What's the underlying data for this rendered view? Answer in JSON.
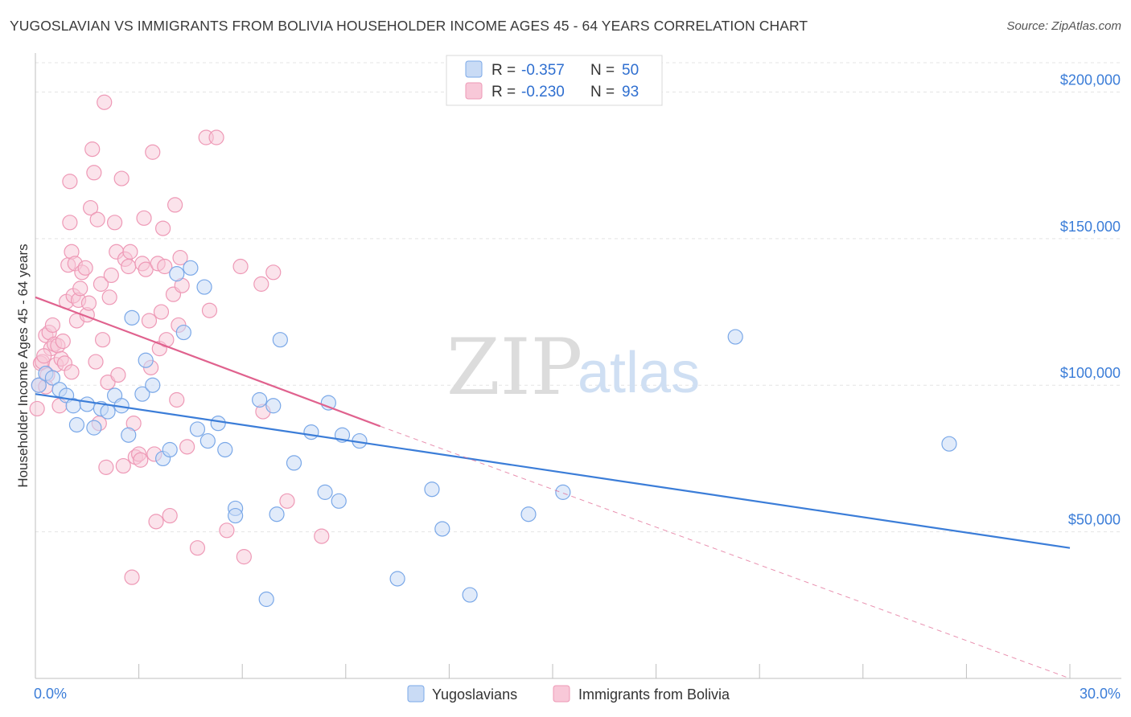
{
  "header": {
    "title": "YUGOSLAVIAN VS IMMIGRANTS FROM BOLIVIA HOUSEHOLDER INCOME AGES 45 - 64 YEARS CORRELATION CHART",
    "source": "Source: ZipAtlas.com"
  },
  "watermark": {
    "zip": "ZIP",
    "atlas": "atlas"
  },
  "legend_box": {
    "rows": [
      {
        "r_label": "R =",
        "r_value": "-0.357",
        "n_label": "N =",
        "n_value": "50"
      },
      {
        "r_label": "R =",
        "r_value": "-0.230",
        "n_label": "N =",
        "n_value": "93"
      }
    ]
  },
  "bottom_legend": [
    "Yugoslavians",
    "Immigrants from Bolivia"
  ],
  "colors": {
    "blue": "#3b7dd8",
    "blue_fill": "#c9dbf5",
    "blue_stroke": "#7aa8e8",
    "pink": "#e0628e",
    "pink_fill": "#f8c8d8",
    "pink_stroke": "#ee99b6",
    "grid": "#e4e4e4",
    "tick_text": "#3b7dd8"
  },
  "chart_data": {
    "type": "scatter",
    "title": "YUGOSLAVIAN VS IMMIGRANTS FROM BOLIVIA HOUSEHOLDER INCOME AGES 45 - 64 YEARS CORRELATION CHART",
    "xlabel": "",
    "ylabel": "Householder Income Ages 45 - 64 years",
    "xlim": [
      0,
      30
    ],
    "ylim": [
      0,
      210000
    ],
    "x_tick_labels": [
      "0.0%",
      "30.0%"
    ],
    "y_ticks": [
      50000,
      100000,
      150000,
      200000
    ],
    "y_tick_labels": [
      "$50,000",
      "$100,000",
      "$150,000",
      "$200,000"
    ],
    "grid": true,
    "legend_position": "top-center",
    "series": [
      {
        "name": "Yugoslavians",
        "color": "#3b7dd8",
        "r": -0.357,
        "n": 50,
        "trendline": {
          "x": [
            0,
            30
          ],
          "y": [
            97000,
            44500
          ]
        },
        "points": [
          [
            0.1,
            100000
          ],
          [
            0.3,
            104000
          ],
          [
            0.5,
            102500
          ],
          [
            0.7,
            98500
          ],
          [
            0.9,
            96500
          ],
          [
            1.1,
            93000
          ],
          [
            1.2,
            86500
          ],
          [
            1.5,
            93500
          ],
          [
            1.7,
            85500
          ],
          [
            1.9,
            92000
          ],
          [
            2.1,
            91000
          ],
          [
            2.3,
            96500
          ],
          [
            2.5,
            93000
          ],
          [
            2.7,
            83000
          ],
          [
            2.8,
            123000
          ],
          [
            3.1,
            97000
          ],
          [
            3.2,
            108500
          ],
          [
            3.4,
            100000
          ],
          [
            3.7,
            75000
          ],
          [
            3.9,
            78000
          ],
          [
            4.1,
            138000
          ],
          [
            4.3,
            118000
          ],
          [
            4.5,
            140000
          ],
          [
            4.7,
            85000
          ],
          [
            4.9,
            133500
          ],
          [
            5.0,
            81000
          ],
          [
            5.3,
            87000
          ],
          [
            5.5,
            78000
          ],
          [
            5.8,
            58000
          ],
          [
            5.8,
            55500
          ],
          [
            6.5,
            95000
          ],
          [
            6.7,
            27000
          ],
          [
            6.9,
            93000
          ],
          [
            7.0,
            56000
          ],
          [
            7.1,
            115500
          ],
          [
            7.5,
            73500
          ],
          [
            8.0,
            84000
          ],
          [
            8.4,
            63500
          ],
          [
            8.5,
            94000
          ],
          [
            8.8,
            60500
          ],
          [
            8.9,
            83000
          ],
          [
            9.4,
            81000
          ],
          [
            10.5,
            34000
          ],
          [
            11.5,
            64500
          ],
          [
            11.8,
            51000
          ],
          [
            12.6,
            28500
          ],
          [
            14.3,
            56000
          ],
          [
            15.3,
            63500
          ],
          [
            20.3,
            116500
          ],
          [
            26.5,
            80000
          ]
        ]
      },
      {
        "name": "Immigrants from Bolivia",
        "color": "#e0628e",
        "r": -0.23,
        "n": 93,
        "trendline": {
          "x": [
            0,
            10
          ],
          "y": [
            130000,
            86000
          ]
        },
        "trendline_dashed": {
          "x": [
            10,
            30
          ],
          "y": [
            86000,
            0
          ]
        },
        "points": [
          [
            0.05,
            92000
          ],
          [
            0.1,
            100000
          ],
          [
            0.15,
            107500
          ],
          [
            0.2,
            108000
          ],
          [
            0.3,
            117000
          ],
          [
            0.35,
            103500
          ],
          [
            0.4,
            118000
          ],
          [
            0.45,
            112500
          ],
          [
            0.5,
            120500
          ],
          [
            0.55,
            114000
          ],
          [
            0.6,
            107000
          ],
          [
            0.65,
            113500
          ],
          [
            0.7,
            93000
          ],
          [
            0.75,
            109000
          ],
          [
            0.8,
            115000
          ],
          [
            0.85,
            107500
          ],
          [
            0.9,
            128500
          ],
          [
            0.95,
            141000
          ],
          [
            1.0,
            155500
          ],
          [
            1.0,
            169500
          ],
          [
            1.05,
            145500
          ],
          [
            1.1,
            130500
          ],
          [
            1.15,
            141500
          ],
          [
            1.2,
            122000
          ],
          [
            1.25,
            129000
          ],
          [
            1.3,
            133000
          ],
          [
            1.35,
            138500
          ],
          [
            1.45,
            140000
          ],
          [
            1.5,
            124000
          ],
          [
            1.55,
            128000
          ],
          [
            1.6,
            160500
          ],
          [
            1.65,
            180500
          ],
          [
            1.7,
            172500
          ],
          [
            1.75,
            108000
          ],
          [
            1.8,
            156500
          ],
          [
            1.85,
            87000
          ],
          [
            1.9,
            134500
          ],
          [
            1.95,
            115500
          ],
          [
            2.0,
            196500
          ],
          [
            2.05,
            72000
          ],
          [
            2.1,
            101000
          ],
          [
            2.15,
            130000
          ],
          [
            2.2,
            137500
          ],
          [
            2.3,
            155500
          ],
          [
            2.35,
            145500
          ],
          [
            2.4,
            103500
          ],
          [
            2.5,
            170500
          ],
          [
            2.55,
            72500
          ],
          [
            2.6,
            143000
          ],
          [
            2.7,
            140500
          ],
          [
            2.75,
            145500
          ],
          [
            2.8,
            34500
          ],
          [
            2.85,
            87000
          ],
          [
            2.9,
            75500
          ],
          [
            3.0,
            76500
          ],
          [
            3.05,
            74500
          ],
          [
            3.1,
            141500
          ],
          [
            3.15,
            157000
          ],
          [
            3.2,
            139500
          ],
          [
            3.3,
            122000
          ],
          [
            3.35,
            106000
          ],
          [
            3.4,
            179500
          ],
          [
            3.45,
            76500
          ],
          [
            3.5,
            53500
          ],
          [
            3.55,
            141500
          ],
          [
            3.6,
            112500
          ],
          [
            3.65,
            125000
          ],
          [
            3.7,
            153500
          ],
          [
            3.75,
            140500
          ],
          [
            3.8,
            115500
          ],
          [
            3.9,
            55500
          ],
          [
            4.0,
            131000
          ],
          [
            4.05,
            161500
          ],
          [
            4.1,
            95000
          ],
          [
            4.15,
            120500
          ],
          [
            4.2,
            143500
          ],
          [
            4.25,
            134000
          ],
          [
            4.4,
            79000
          ],
          [
            4.7,
            44500
          ],
          [
            4.95,
            184500
          ],
          [
            5.05,
            125500
          ],
          [
            5.25,
            184500
          ],
          [
            5.55,
            50500
          ],
          [
            5.95,
            140500
          ],
          [
            6.05,
            41500
          ],
          [
            6.55,
            134500
          ],
          [
            6.6,
            91000
          ],
          [
            6.9,
            138500
          ],
          [
            7.3,
            60500
          ],
          [
            8.3,
            48500
          ],
          [
            0.25,
            110000
          ],
          [
            0.3,
            99500
          ],
          [
            1.05,
            104500
          ]
        ]
      }
    ]
  }
}
